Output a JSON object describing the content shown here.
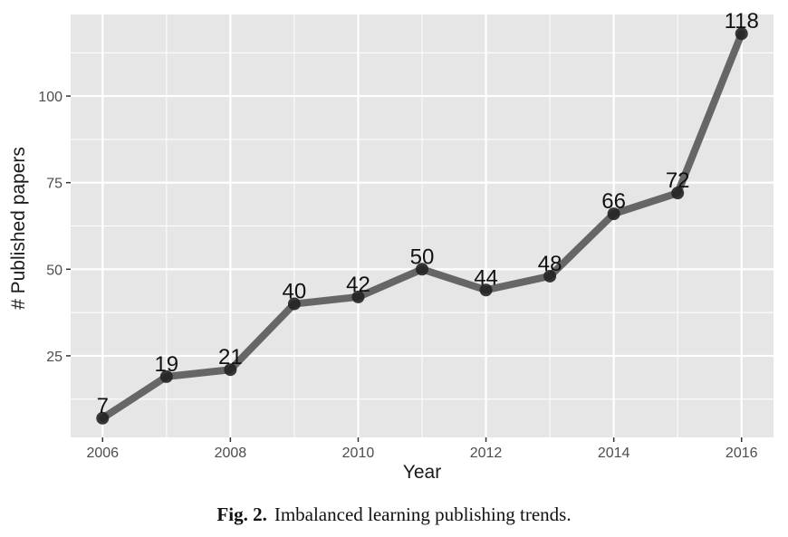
{
  "chart_data": {
    "type": "line",
    "x": [
      2006,
      2007,
      2008,
      2009,
      2010,
      2011,
      2012,
      2013,
      2014,
      2015,
      2016
    ],
    "series": [
      {
        "values": [
          7,
          19,
          21,
          40,
          42,
          50,
          44,
          48,
          66,
          72,
          118
        ]
      }
    ],
    "data_labels": [
      "7",
      "19",
      "21",
      "40",
      "42",
      "50",
      "44",
      "48",
      "66",
      "72",
      "118"
    ],
    "xlabel": "Year",
    "ylabel": "# Published papers",
    "x_ticks": [
      "2006",
      "2008",
      "2010",
      "2012",
      "2014",
      "2016"
    ],
    "y_ticks": [
      "25",
      "50",
      "75",
      "100"
    ],
    "x_tick_values": [
      2006,
      2008,
      2010,
      2012,
      2014,
      2016
    ],
    "y_tick_values": [
      25,
      50,
      75,
      100
    ],
    "xlim": [
      2005.5,
      2016.5
    ],
    "ylim": [
      1.45,
      123.55
    ],
    "grid": true,
    "colors": {
      "panel": "#e6e6e6",
      "grid": "#ffffff",
      "line": "#666666",
      "point": "#222222"
    }
  },
  "caption": {
    "label": "Fig. 2.",
    "text": "Imbalanced learning publishing trends."
  }
}
